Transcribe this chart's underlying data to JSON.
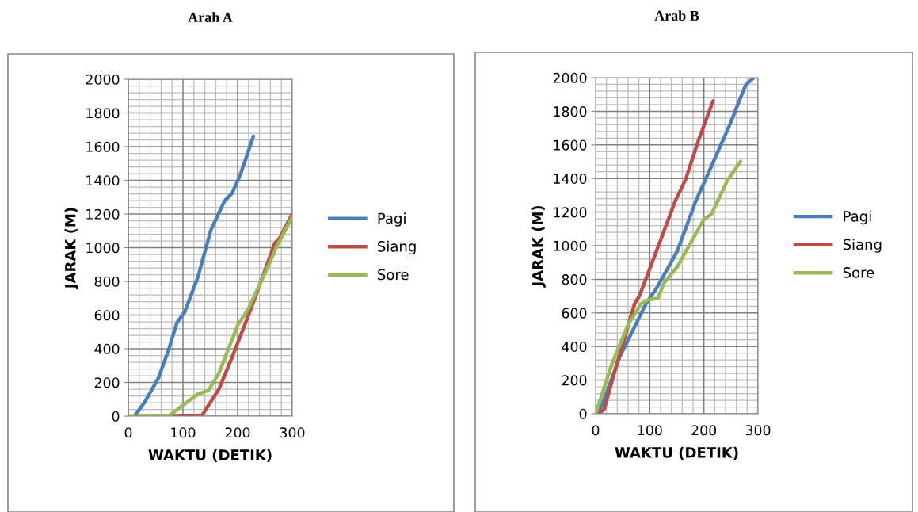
{
  "chart_data": [
    {
      "type": "line",
      "title": "Arah A",
      "xlabel": "WAKTU (DETIK)",
      "ylabel": "JARAK (M)",
      "xlim": [
        0,
        300
      ],
      "xticks": [
        0,
        100,
        200,
        300
      ],
      "ylim": [
        0,
        2000
      ],
      "yticks": [
        0,
        200,
        400,
        600,
        800,
        1000,
        1200,
        1400,
        1600,
        1800,
        2000
      ],
      "grid": true,
      "legend": "right",
      "marker": "none",
      "series": [
        {
          "name": "Pagi",
          "color": "#4a7ebb",
          "x": [
            11,
            30,
            55,
            74,
            89,
            103,
            127,
            151,
            176,
            190,
            205,
            229
          ],
          "values": [
            0,
            83,
            225,
            397,
            555,
            617,
            822,
            1104,
            1277,
            1324,
            1434,
            1662
          ]
        },
        {
          "name": "Siang",
          "color": "#be4b48",
          "x": [
            0,
            135,
            166,
            190,
            224,
            268,
            277,
            300
          ],
          "values": [
            0,
            5,
            162,
            350,
            633,
            1026,
            1057,
            1200
          ]
        },
        {
          "name": "Sore",
          "color": "#98b954",
          "x": [
            0,
            76,
            98,
            127,
            147,
            166,
            200,
            219,
            253,
            272,
            300
          ],
          "values": [
            0,
            5,
            60,
            130,
            154,
            256,
            539,
            633,
            869,
            1010,
            1183
          ]
        }
      ]
    },
    {
      "type": "line",
      "title": "Arab B",
      "xlabel": "WAKTU (DETIK)",
      "ylabel": "JARAK (M)",
      "xlim": [
        0,
        300
      ],
      "xticks": [
        0,
        100,
        200,
        300
      ],
      "ylim": [
        0,
        2000
      ],
      "yticks": [
        0,
        200,
        400,
        600,
        800,
        1000,
        1200,
        1400,
        1600,
        1800,
        2000
      ],
      "grid": true,
      "legend": "right",
      "marker": "none",
      "series": [
        {
          "name": "Pagi",
          "color": "#4a7ebb",
          "x": [
            0,
            11,
            45,
            69,
            93,
            113,
            151,
            185,
            205,
            248,
            277,
            292
          ],
          "values": [
            0,
            44,
            342,
            498,
            655,
            749,
            969,
            1266,
            1408,
            1721,
            1956,
            2000
          ]
        },
        {
          "name": "Siang",
          "color": "#be4b48",
          "x": [
            6,
            16,
            35,
            55,
            72,
            81,
            118,
            147,
            166,
            190,
            217
          ],
          "values": [
            0,
            28,
            248,
            467,
            655,
            702,
            1016,
            1266,
            1392,
            1627,
            1862
          ]
        },
        {
          "name": "Sore",
          "color": "#98b954",
          "x": [
            0,
            30,
            60,
            84,
            98,
            115,
            127,
            151,
            200,
            214,
            244,
            268
          ],
          "values": [
            0,
            295,
            530,
            655,
            679,
            687,
            781,
            875,
            1157,
            1188,
            1392,
            1502
          ]
        }
      ]
    }
  ]
}
